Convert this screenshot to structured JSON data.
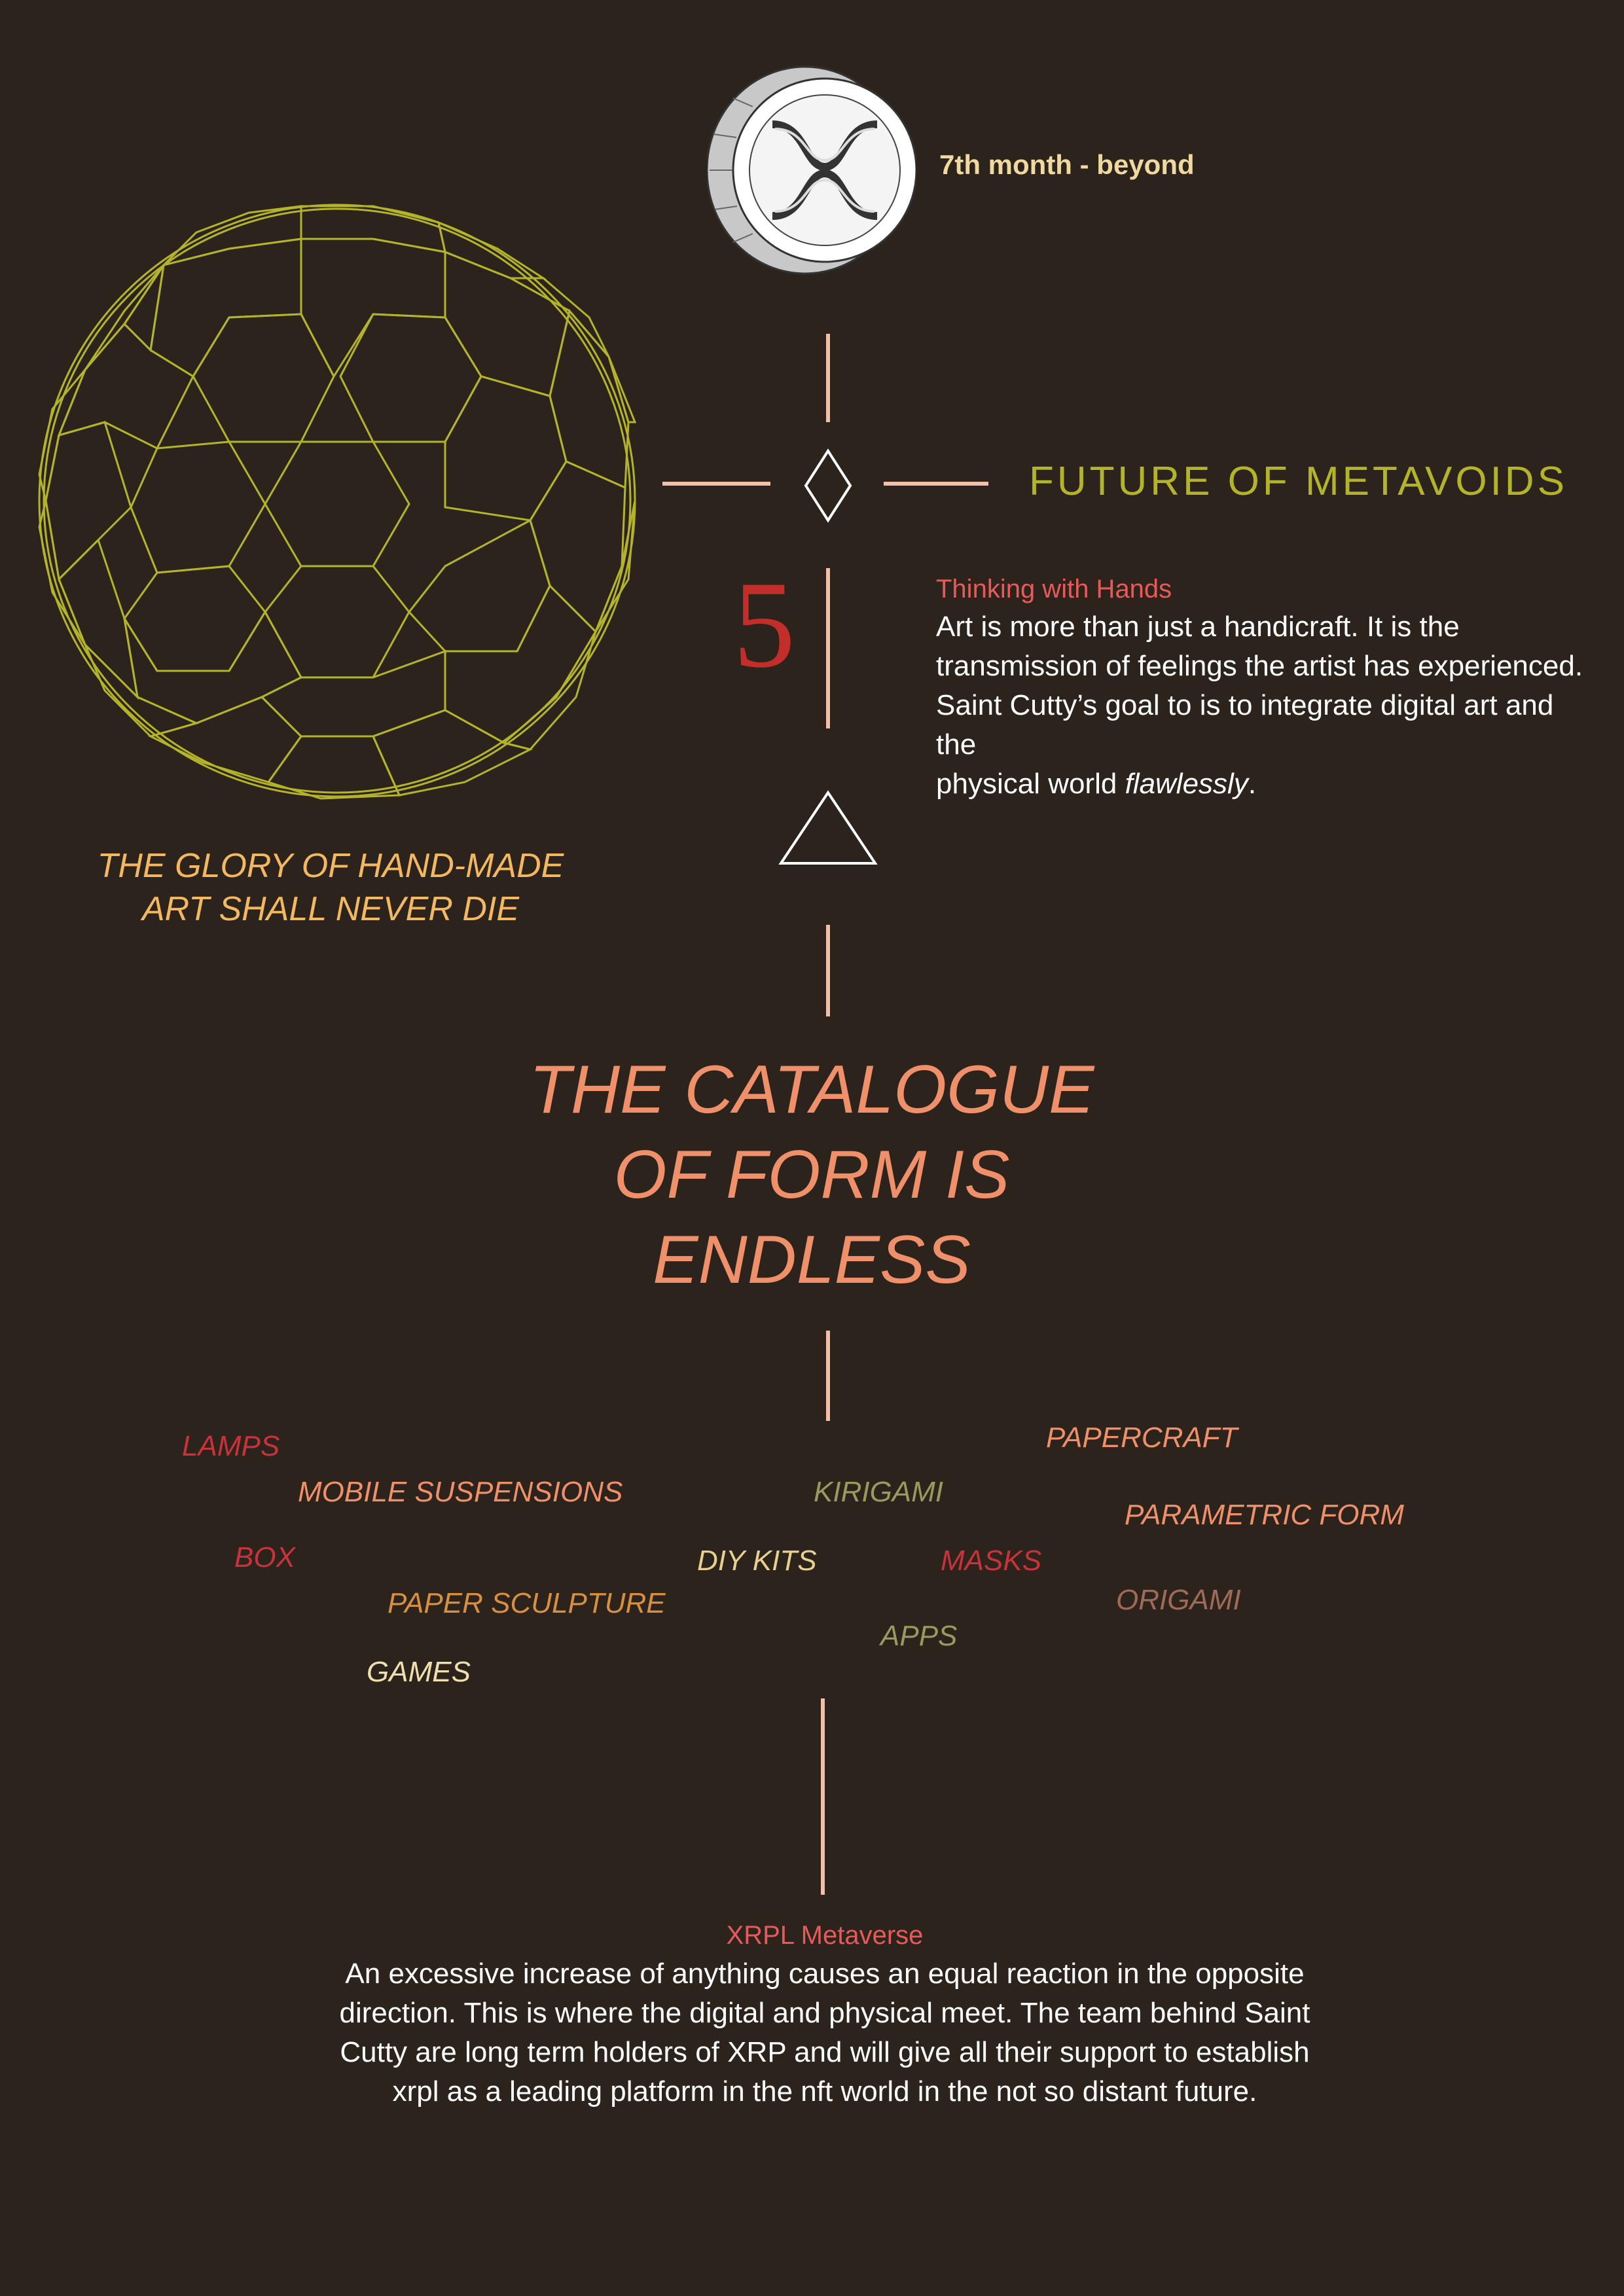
{
  "header": {
    "timeline_label": "7th month - beyond",
    "section_title": "FUTURE OF METAVOIDS",
    "step_number": "5"
  },
  "thinking": {
    "title": "Thinking with Hands",
    "lines": [
      "Art is more than just a handicraft. It is the",
      "transmission of feelings the artist has experienced.",
      "Saint Cutty’s goal to is to integrate digital art and the"
    ],
    "last_line_prefix": "physical world ",
    "last_line_emphasis": "flawlessly",
    "last_line_suffix": "."
  },
  "sphere_caption": {
    "line1": "THE GLORY OF HAND-MADE",
    "line2": "ART SHALL NEVER DIE"
  },
  "catalogue_heading": {
    "line1": "THE CATALOGUE",
    "line2": "OF FORM IS",
    "line3": "ENDLESS"
  },
  "forms": {
    "lamps": "LAMPS",
    "mobile_suspensions": "MOBILE SUSPENSIONS",
    "box": "BOX",
    "paper_sculpture": "PAPER SCULPTURE",
    "games": "GAMES",
    "diy_kits": "DIY KITS",
    "kirigami": "KIRIGAMI",
    "masks": "MASKS",
    "apps": "APPS",
    "papercraft": "PAPERCRAFT",
    "parametric_form": "PARAMETRIC FORM",
    "origami": "ORIGAMI"
  },
  "xrpl": {
    "title": "XRPL Metaverse",
    "lines": [
      "An excessive increase of anything causes an equal reaction in the opposite",
      "direction. This is where the digital and physical meet. The team behind Saint",
      "Cutty are long term holders of XRP and will give all their support to establish",
      "xrpl as a leading platform in the nft world in the not so distant future."
    ]
  },
  "icons": {
    "coin": "xrp-coin-icon",
    "sphere": "geodesic-sphere-icon",
    "diamond": "diamond-icon",
    "triangle": "triangle-icon"
  },
  "colors": {
    "background": "#2c241c",
    "line": "#f2c0a8",
    "olive": "#b4b42a",
    "heading": "#f0906a",
    "step_red": "#c22e2a",
    "gold": "#f4b860"
  }
}
